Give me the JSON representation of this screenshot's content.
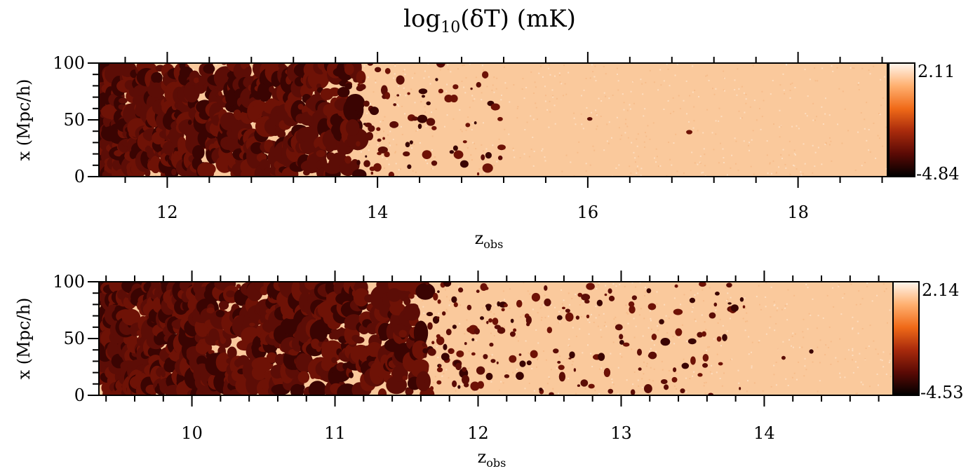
{
  "figure": {
    "title_prefix": "log",
    "title_sub": "10",
    "title_suffix": "(δT) (mK)"
  },
  "chart_data": [
    {
      "type": "heatmap",
      "title": "log10(δT) (mK)",
      "xlabel": "z_obs",
      "xlabel_main": "z",
      "xlabel_sub": "obs",
      "ylabel": "x (Mpc/h)",
      "xlim": [
        11.35,
        18.85
      ],
      "ylim": [
        0,
        100
      ],
      "xticks": [
        12,
        14,
        16,
        18
      ],
      "yticks": [
        0,
        50,
        100
      ],
      "colorbar": {
        "min": -4.84,
        "max": 2.11,
        "min_label": "-4.84",
        "max_label": "2.11"
      },
      "colormap": [
        "#000000",
        "#5a0a05",
        "#a82a0c",
        "#f06a18",
        "#ffb070",
        "#fff6ee"
      ],
      "description": "ionized regions (dark) dominate at low z_obs; neutral medium (light) dominates at high z_obs",
      "ionized_fraction_profile": [
        [
          11.35,
          0.92
        ],
        [
          12.0,
          0.6
        ],
        [
          13.0,
          0.5
        ],
        [
          13.7,
          0.42
        ],
        [
          14.0,
          0.12
        ],
        [
          14.6,
          0.06
        ],
        [
          15.5,
          0.02
        ],
        [
          17.0,
          0.008
        ],
        [
          18.85,
          0.003
        ]
      ]
    },
    {
      "type": "heatmap",
      "title": "",
      "xlabel": "z_obs",
      "xlabel_main": "z",
      "xlabel_sub": "obs",
      "ylabel": "x (Mpc/h)",
      "xlim": [
        9.35,
        14.9
      ],
      "ylim": [
        0,
        100
      ],
      "xticks": [
        10,
        11,
        12,
        13,
        14
      ],
      "yticks": [
        0,
        50,
        100
      ],
      "colorbar": {
        "min": -4.53,
        "max": 2.14,
        "min_label": "-4.53",
        "max_label": "2.14"
      },
      "colormap": [
        "#000000",
        "#5a0a05",
        "#a82a0c",
        "#f06a18",
        "#ffb070",
        "#fff6ee"
      ],
      "description": "ionized regions (dark) dominate at low z_obs; neutral medium (light) dominates at high z_obs",
      "ionized_fraction_profile": [
        [
          9.35,
          0.95
        ],
        [
          10.0,
          0.75
        ],
        [
          10.3,
          0.5
        ],
        [
          11.0,
          0.5
        ],
        [
          11.6,
          0.32
        ],
        [
          12.0,
          0.12
        ],
        [
          12.6,
          0.09
        ],
        [
          13.3,
          0.06
        ],
        [
          14.0,
          0.03
        ],
        [
          14.9,
          0.01
        ]
      ]
    }
  ]
}
